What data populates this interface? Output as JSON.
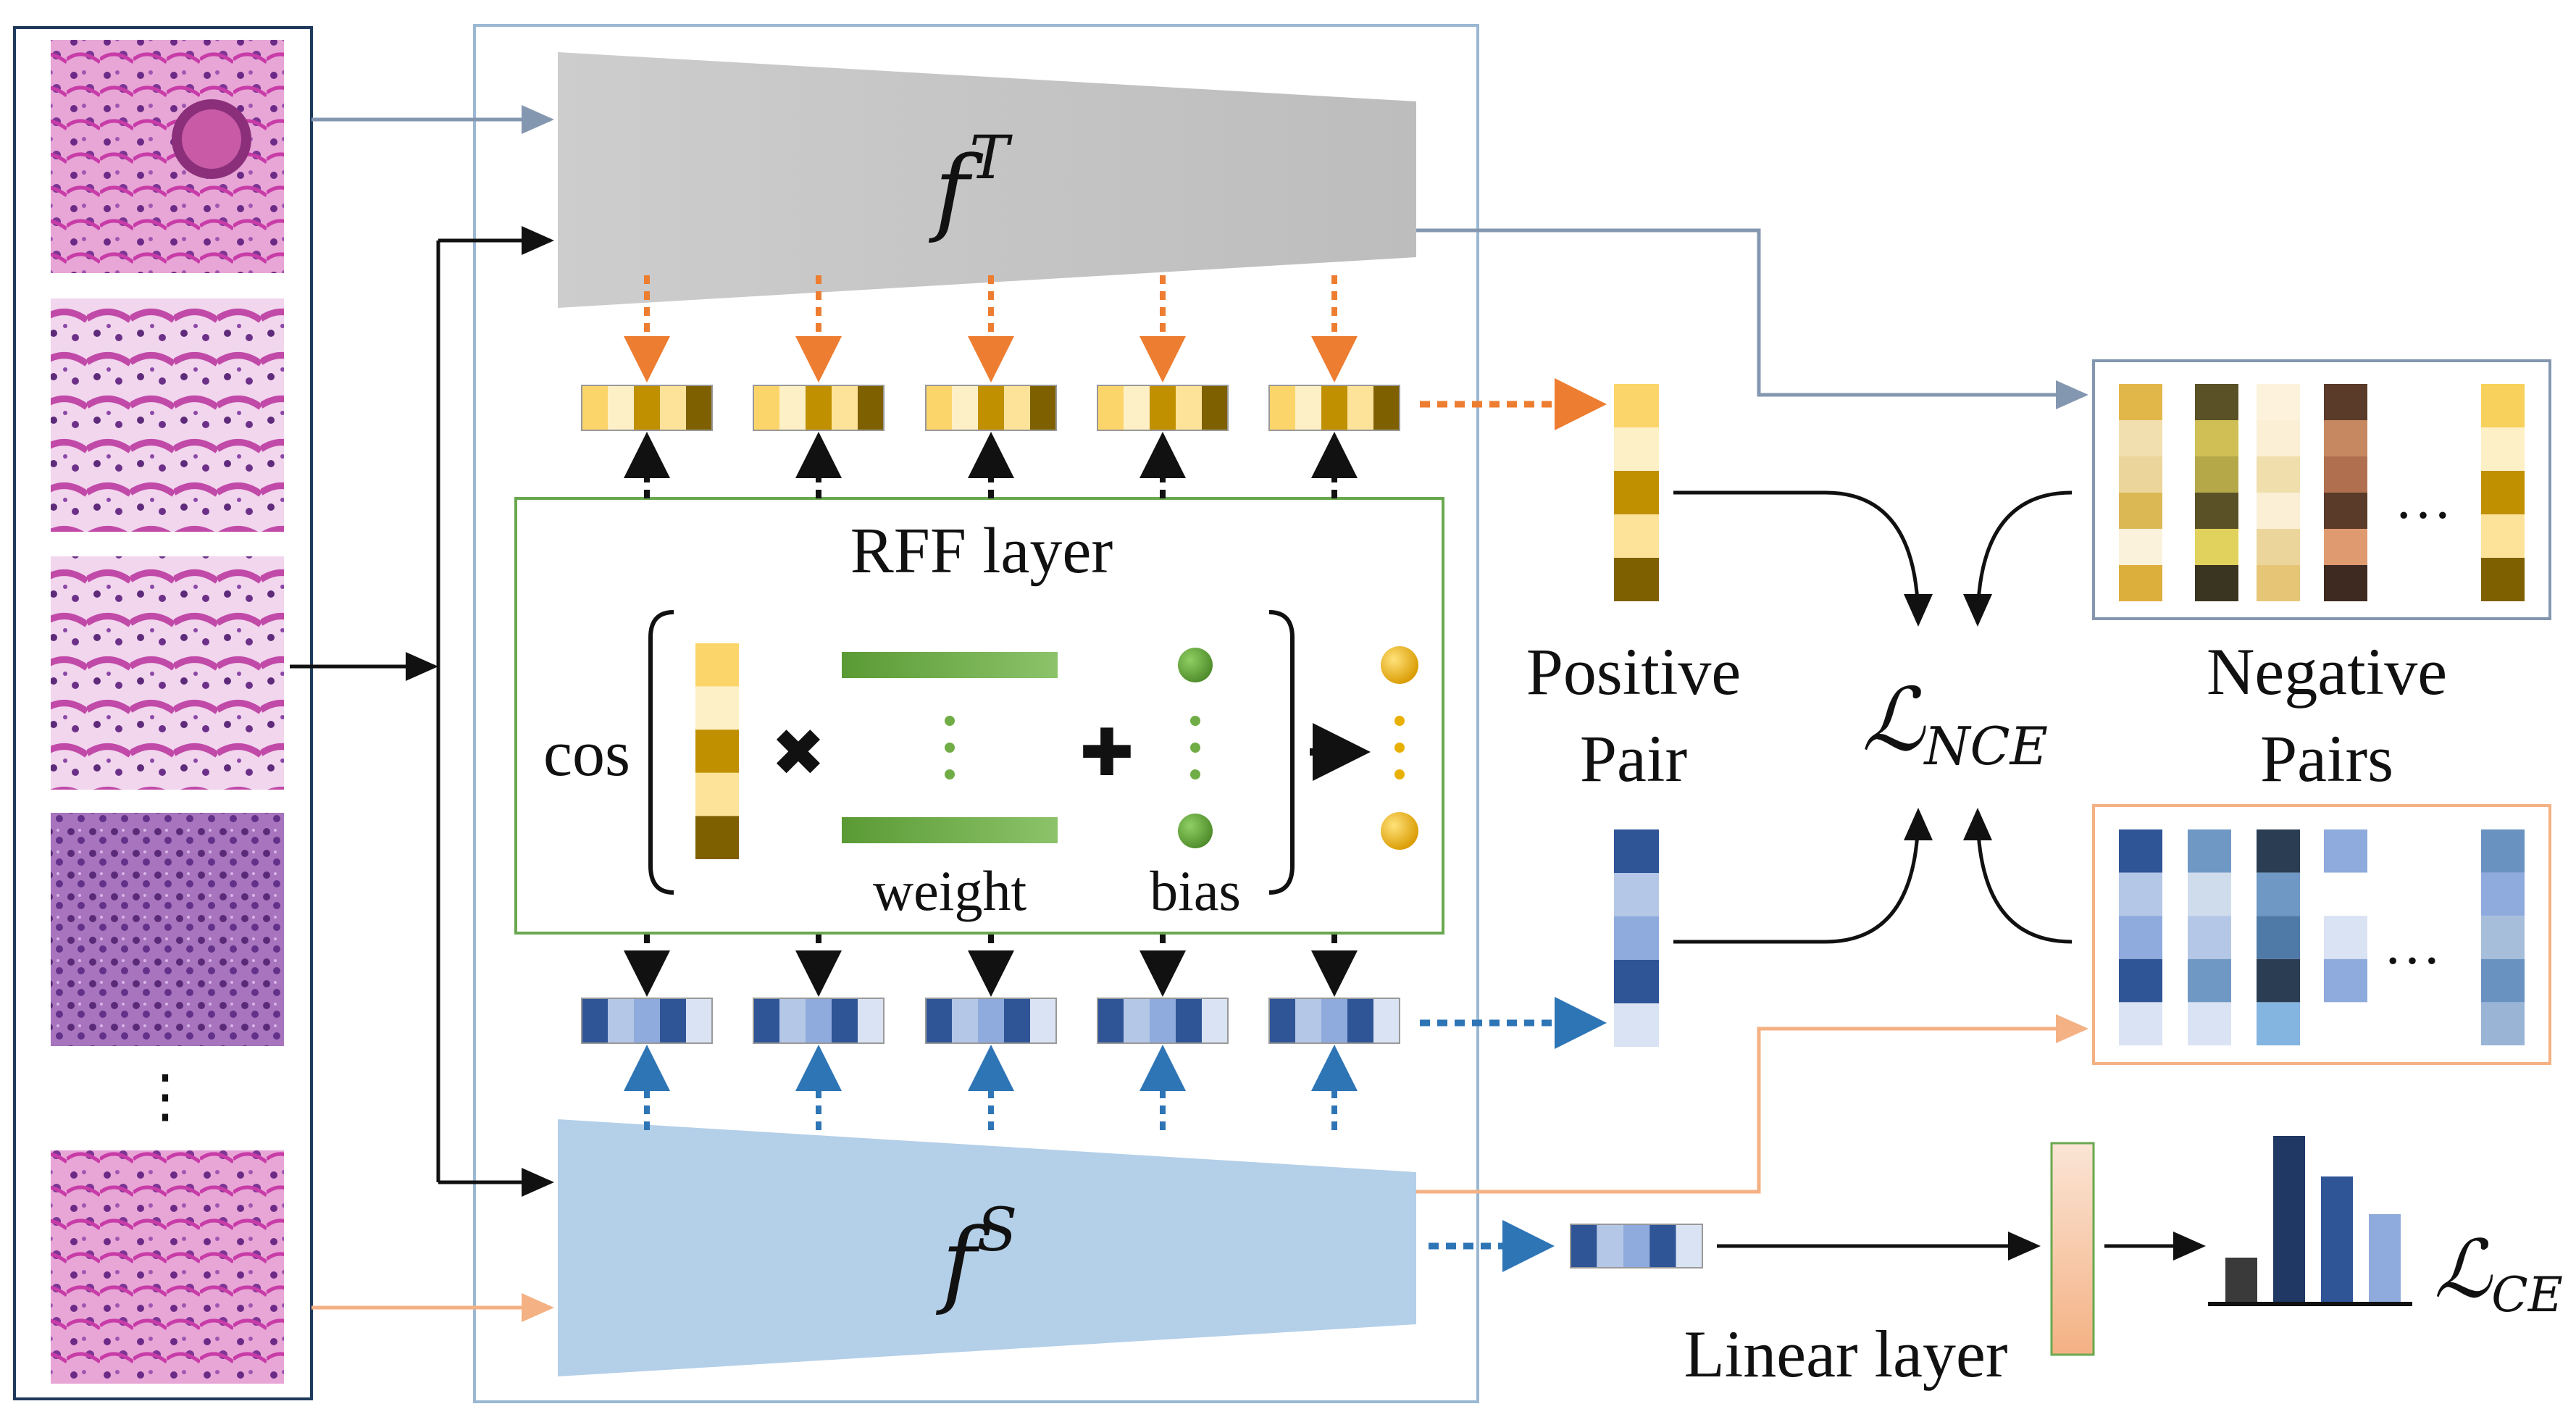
{
  "labels": {
    "rff_layer": "RFF layer",
    "cos": "cos",
    "weight": "weight",
    "bias": "bias",
    "positive_line1": "Positive",
    "positive_line2": "Pair",
    "negative_line1": "Negative",
    "negative_line2": "Pairs",
    "linear_layer": "Linear layer",
    "teacher_f": "f",
    "teacher_sup": "T",
    "student_f": "f",
    "student_sup": "S",
    "loss_nce_L": "ℒ",
    "loss_nce_sub": "NCE",
    "loss_ce_L": "ℒ",
    "loss_ce_sub": "CE",
    "ellipsis": "…",
    "vdots": "⋮"
  },
  "colors": {
    "teacher_block": "#c8c8c8",
    "student_block": "#b4cfe8",
    "rff_border": "#6aa84f",
    "frame_border": "#9bb8d3",
    "left_border": "#1f3b5c",
    "teacher_arrow": "#8497b0",
    "student_arrow": "#f4b183",
    "orange_dotted": "#ed7d31",
    "blue_dotted": "#2e75b6",
    "gold_palette": [
      "#fcd56a",
      "#fdf0c6",
      "#c09000",
      "#fde39a",
      "#7f6000"
    ],
    "blue_palette": [
      "#2f5597",
      "#b4c7e7",
      "#8faadc",
      "#2f5597",
      "#dae3f3"
    ],
    "weight_green": "#70ad47",
    "bias_green": "#70ad47",
    "output_gold": "#f5b800",
    "linear_layer_fill": "#f8cbad",
    "bar_colors": [
      "#3a3a3a",
      "#1f3864",
      "#2f5597",
      "#8faadc"
    ]
  },
  "tissue_patches": [
    "patch-1",
    "patch-2",
    "patch-3",
    "patch-4",
    "patch-5"
  ],
  "negative_gold_columns": [
    [
      "#e2b74a",
      "#f2dfb0",
      "#ecd59a",
      "#dcb855",
      "#fbf2dc",
      "#dcae3c"
    ],
    [
      "#5a5127",
      "#cfbf55",
      "#b4a848",
      "#5a5127",
      "#e0d25c",
      "#3a3520"
    ],
    [
      "#fdf3dc",
      "#fbf0d6",
      "#f0dfac",
      "#fbf0d6",
      "#ecd59a",
      "#e6c676"
    ],
    [
      "#5a3a28",
      "#c68860",
      "#b07050",
      "#5a3a28",
      "#e09a70",
      "#3e2a20"
    ],
    [
      "#f7d15c",
      "#fdf0c6",
      "#c09000",
      "#fde39a",
      "#7f6000"
    ]
  ],
  "negative_blue_columns": [
    [
      "#2f5597",
      "#b4c7e7",
      "#8faadc",
      "#2f5597",
      "#dae3f3"
    ],
    [
      "#6f98c4",
      "#cfdceb",
      "#b4c7e7",
      "#6f98c4",
      "#dae3f3"
    ],
    [
      "#2b3d52",
      "#6f98c4",
      "#4f7aa8",
      "#2b3d52",
      "#84b4e0"
    ],
    [
      "#8faadc",
      "#ffffff",
      "#dae3f3",
      "#8faadc",
      "#ffffff"
    ],
    [
      "#6a92c0",
      "#8faadc",
      "#a7bedb",
      "#6a92c0",
      "#9ab4d6"
    ]
  ],
  "ce_bars": [
    0.16,
    0.58,
    0.44,
    0.31
  ]
}
